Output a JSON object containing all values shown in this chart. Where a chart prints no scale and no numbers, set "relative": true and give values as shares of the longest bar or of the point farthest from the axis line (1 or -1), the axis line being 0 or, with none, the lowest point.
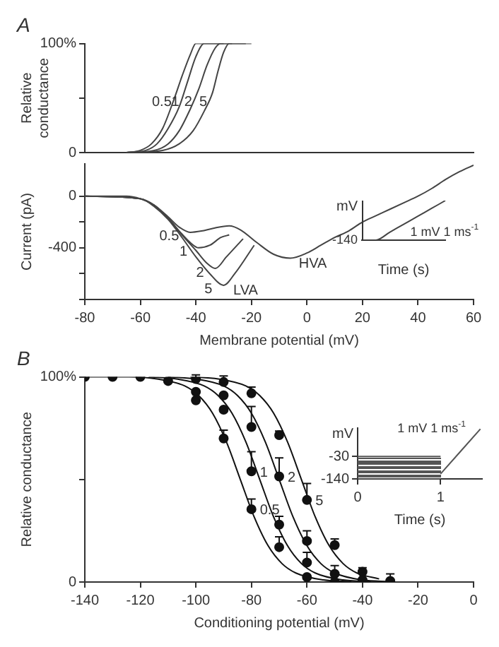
{
  "chart_data": [
    {
      "type": "line",
      "title": "A",
      "ylabel": "Relative conductance",
      "xlim": [
        -80,
        60
      ],
      "ylim": [
        0,
        100
      ],
      "yticks": [
        0,
        {
          "value": 50,
          "label": null
        },
        {
          "value": 100,
          "label": "100%"
        }
      ],
      "tick_labels": "y",
      "series": [
        {
          "name": "0.5",
          "color": "#444444",
          "x": [
            -65,
            -60,
            -56,
            -52,
            -48,
            -45,
            -42,
            -40,
            -30
          ],
          "values": [
            0,
            2,
            8,
            22,
            48,
            70,
            90,
            100,
            100
          ]
        },
        {
          "name": "1",
          "color": "#444444",
          "x": [
            -65,
            -58,
            -54,
            -50,
            -46,
            -43,
            -40,
            -37,
            -27
          ],
          "values": [
            0,
            2,
            8,
            22,
            42,
            65,
            88,
            100,
            100
          ]
        },
        {
          "name": "2",
          "color": "#444444",
          "x": [
            -65,
            -55,
            -50,
            -46,
            -42,
            -39,
            -36,
            -33,
            -31,
            -22
          ],
          "values": [
            0,
            2,
            8,
            20,
            40,
            58,
            80,
            96,
            100,
            100
          ]
        },
        {
          "name": "5",
          "color": "#444444",
          "x": [
            -65,
            -52,
            -46,
            -41,
            -37,
            -34,
            -32,
            -30,
            -28,
            -20
          ],
          "values": [
            0,
            2,
            8,
            20,
            38,
            55,
            75,
            92,
            100,
            100
          ]
        }
      ]
    },
    {
      "type": "line",
      "xlabel": "Membrane potential (mV)",
      "ylabel": "Current (pA)",
      "xlim": [
        -80,
        60
      ],
      "ylim": [
        -800,
        250
      ],
      "xticks": [
        -80,
        -60,
        -40,
        -20,
        0,
        20,
        40,
        60
      ],
      "yticks": [
        0,
        {
          "value": -200,
          "label": null
        },
        -400,
        {
          "value": -600,
          "label": null
        },
        {
          "value": -800,
          "label": null
        }
      ],
      "annotations": [
        {
          "text": "LVA",
          "x": -29.6,
          "y": -689
        },
        {
          "text": "HVA",
          "x": -6,
          "y": -480
        }
      ],
      "series": [
        {
          "name": "0.5",
          "color": "#444444",
          "x": [
            -80,
            -65,
            -60,
            -55,
            -50,
            -46,
            -42,
            -38,
            -34,
            -28,
            -24,
            -18,
            -12,
            -6,
            0,
            5,
            10,
            15,
            20,
            25,
            30,
            35,
            40,
            45,
            50,
            55,
            60
          ],
          "values": [
            0,
            0,
            -20,
            -70,
            -160,
            -240,
            -280,
            -270,
            -250,
            -230,
            -260,
            -360,
            -450,
            -480,
            -440,
            -380,
            -320,
            -270,
            -200,
            -150,
            -100,
            -50,
            0,
            60,
            130,
            190,
            240
          ]
        },
        {
          "name": "1",
          "color": "#444444",
          "x": [
            -80,
            -60,
            -55,
            -50,
            -46,
            -42,
            -39,
            -35,
            -31,
            -28
          ],
          "values": [
            0,
            -20,
            -70,
            -170,
            -270,
            -360,
            -400,
            -380,
            -320,
            -300
          ]
        },
        {
          "name": "2",
          "color": "#444444",
          "x": [
            -80,
            -60,
            -55,
            -50,
            -45,
            -40,
            -36,
            -33,
            -29,
            -23
          ],
          "values": [
            0,
            -20,
            -70,
            -170,
            -300,
            -420,
            -520,
            -560,
            -470,
            -330
          ]
        },
        {
          "name": "5",
          "color": "#444444",
          "x": [
            -80,
            -60,
            -55,
            -50,
            -45,
            -40,
            -35,
            -30,
            -26,
            -19
          ],
          "values": [
            0,
            -20,
            -80,
            -180,
            -320,
            -470,
            -600,
            -690,
            -600,
            -380
          ]
        }
      ]
    },
    {
      "type": "line",
      "relative": true,
      "xlabel": "Time (s)",
      "ylabel": "mV",
      "categories": [
        null,
        null,
        null,
        null,
        null,
        null,
        null
      ],
      "annotations": [
        "-140",
        "1 mV 1 ms$^{-1}$"
      ],
      "series": [
        {
          "color": "#444444",
          "values": [
            0,
            0,
            0.2,
            0.4,
            0.6,
            0.8,
            1
          ]
        }
      ]
    },
    {
      "type": "scatter",
      "title": "B",
      "xlabel": "Conditioning potential (mV)",
      "ylabel": "Relative conductance",
      "xlim": [
        -140,
        0
      ],
      "ylim": [
        0,
        100
      ],
      "xticks": [
        -140,
        -120,
        -100,
        -80,
        -60,
        -40,
        -20,
        0
      ],
      "yticks": [
        0,
        {
          "value": 50,
          "label": null
        },
        {
          "value": 100,
          "label": "100%"
        }
      ],
      "marker": "circle",
      "series": [
        {
          "name": "0.5",
          "color": "#111111",
          "x": [
            -140,
            -130,
            -120,
            -110,
            -100,
            -90,
            -80,
            -70,
            -60,
            -50
          ],
          "values": [
            100,
            100,
            100,
            98,
            88.6,
            70,
            35.5,
            17,
            2.4,
            0
          ],
          "errors": [
            null,
            null,
            null,
            null,
            null,
            [
              70,
              74
            ],
            [
              35.5,
              40.5
            ],
            [
              17,
              22
            ],
            null,
            null
          ]
        },
        {
          "name": "1",
          "color": "#111111",
          "x": [
            -100,
            -90,
            -80,
            -70,
            -60,
            -50
          ],
          "values": [
            92.7,
            84,
            54,
            28,
            9.5,
            4
          ],
          "errors": [
            null,
            null,
            [
              54,
              63.5
            ],
            [
              28,
              32
            ],
            [
              9.5,
              14.5
            ],
            [
              4,
              8
            ]
          ]
        },
        {
          "name": "2",
          "color": "#111111",
          "x": [
            -100,
            -90,
            -80,
            -70,
            -60,
            -50,
            -40
          ],
          "values": [
            99,
            91,
            75.6,
            51.5,
            20,
            null,
            1
          ],
          "errors": [
            [
              99,
              101
            ],
            null,
            [
              75.6,
              85.6
            ],
            [
              51.5,
              60.5
            ],
            [
              20,
              25
            ],
            null,
            null
          ]
        },
        {
          "name": "5",
          "color": "#111111",
          "x": [
            -90,
            -80,
            -70,
            -60,
            -50,
            -40,
            -30
          ],
          "values": [
            97.5,
            92,
            71.6,
            40,
            18,
            5,
            0.5
          ],
          "errors": [
            [
              97.5,
              100.5
            ],
            [
              92,
              95
            ],
            [
              71.6,
              73.6
            ],
            [
              40,
              48
            ],
            [
              18,
              21
            ],
            [
              5,
              7
            ],
            [
              0.5,
              4
            ]
          ]
        },
        {
          "type": "line",
          "marker": "none",
          "color": "#111111",
          "x": [
            -140,
            -124,
            -114,
            -104,
            -99,
            -94,
            -89,
            -84,
            -79,
            -74,
            -69,
            -64,
            -54,
            -44
          ],
          "values": [
            100,
            100,
            99,
            95.6,
            90.9,
            82.3,
            68.3,
            50,
            31.7,
            17.7,
            9,
            4.4,
            1,
            0.2
          ]
        },
        {
          "type": "line",
          "marker": "none",
          "color": "#111111",
          "x": [
            -117,
            -107,
            -97,
            -92,
            -87,
            -82,
            -77,
            -72,
            -67,
            -62,
            -57,
            -47,
            -37
          ],
          "values": [
            100,
            99,
            95.6,
            90.9,
            82.3,
            68.3,
            50,
            31.7,
            17.7,
            9,
            4.4,
            1,
            0.2
          ]
        },
        {
          "type": "line",
          "marker": "none",
          "color": "#111111",
          "x": [
            -110,
            -100,
            -90,
            -85,
            -80,
            -75,
            -70,
            -65,
            -60,
            -55,
            -50,
            -40,
            -30
          ],
          "values": [
            100,
            99,
            95.6,
            90.9,
            82.3,
            68.3,
            50,
            31.7,
            17.7,
            9,
            4.4,
            1,
            0.2
          ]
        },
        {
          "type": "line",
          "marker": "none",
          "color": "#111111",
          "x": [
            -102,
            -92,
            -82,
            -77,
            -72,
            -67,
            -62,
            -57,
            -52,
            -47,
            -42,
            -34
          ],
          "values": [
            100,
            99,
            95.6,
            90.9,
            82.3,
            68.3,
            50,
            31.7,
            17.7,
            9,
            4.4,
            1.5
          ]
        }
      ]
    },
    {
      "type": "line",
      "xlabel": "Time (s)",
      "ylabel": "mV",
      "xlim": [
        0,
        1.5
      ],
      "ylim": [
        -140,
        110
      ],
      "xticks": [
        0,
        1
      ],
      "yticks": [
        -140,
        -30
      ],
      "annotations": [
        "1 mV 1 ms$^{-1}$"
      ],
      "series": [
        {
          "color": "#555555",
          "x": [
            0,
            1
          ],
          "values": [
            -140,
            -140
          ]
        },
        {
          "color": "#555555",
          "x": [
            0,
            1
          ],
          "values": [
            -30,
            -30
          ]
        },
        {
          "color": "#555555",
          "x": [
            1,
            1.48
          ],
          "values": [
            -115,
            105
          ]
        }
      ]
    }
  ]
}
